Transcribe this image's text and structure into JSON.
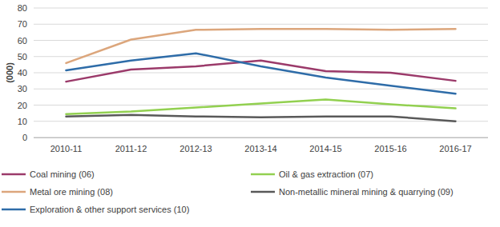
{
  "chart_data": {
    "type": "line",
    "y_label": "(000)",
    "categories": [
      "2010-11",
      "2011-12",
      "2012-13",
      "2013-14",
      "2014-15",
      "2015-16",
      "2016-17"
    ],
    "series": [
      {
        "name": "Coal mining (06)",
        "color": "#9b3a6a",
        "values": [
          34.5,
          42,
          44,
          47.5,
          41,
          40,
          35
        ]
      },
      {
        "name": "Oil & gas extraction (07)",
        "color": "#92d050",
        "values": [
          14.5,
          16,
          18.5,
          21,
          23.5,
          20.5,
          18
        ]
      },
      {
        "name": "Metal ore mining (08)",
        "color": "#dca67c",
        "values": [
          46,
          60.5,
          66.5,
          67,
          67,
          66.5,
          67
        ]
      },
      {
        "name": "Non-metallic mineral mining & quarrying (09)",
        "color": "#595959",
        "values": [
          13,
          14,
          13,
          12.5,
          13,
          13,
          10
        ]
      },
      {
        "name": "Exploration & other support services (10)",
        "color": "#2e6ca8",
        "values": [
          41.5,
          47.5,
          52,
          44,
          37,
          32,
          27
        ]
      }
    ],
    "ylim": [
      0,
      80
    ],
    "yticks": [
      0,
      10,
      20,
      30,
      40,
      50,
      60,
      70,
      80
    ],
    "grid": true,
    "legend": "bottom"
  }
}
